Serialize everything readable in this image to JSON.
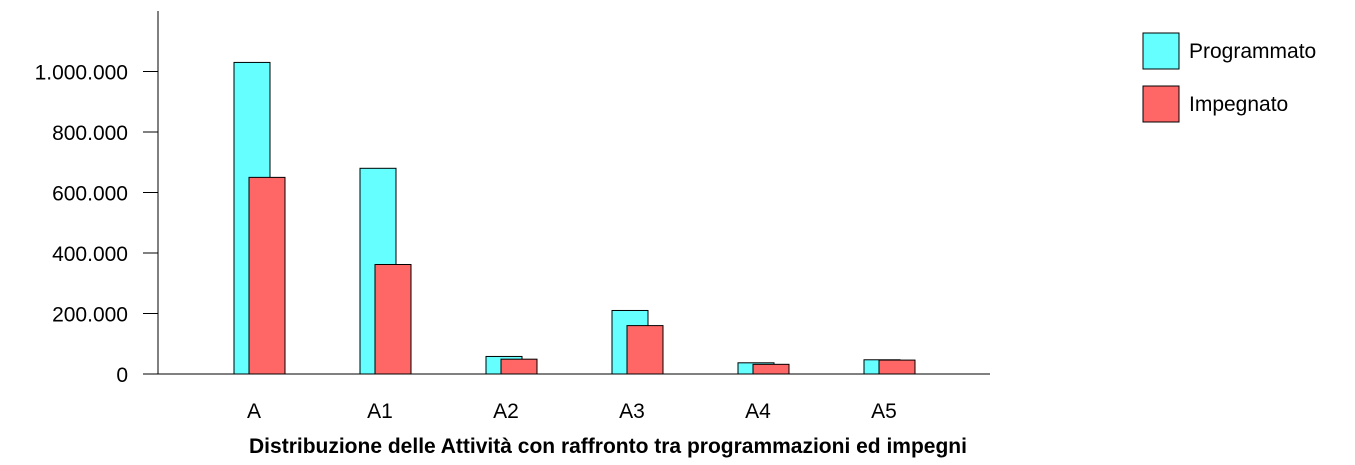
{
  "chart_data": {
    "type": "bar",
    "title": "Distribuzione delle Attività con raffronto tra programmazioni ed impegni",
    "categories": [
      "A",
      "A1",
      "A2",
      "A3",
      "A4",
      "A5"
    ],
    "series": [
      {
        "name": "Programmato",
        "color": "#66ffff",
        "values": [
          1030000,
          680000,
          58000,
          210000,
          37000,
          47000
        ]
      },
      {
        "name": "Impegnato",
        "color": "#ff6666",
        "values": [
          650000,
          362000,
          49000,
          160000,
          32000,
          46000
        ]
      }
    ],
    "yticks": [
      0,
      200000,
      400000,
      600000,
      800000,
      1000000
    ],
    "ytick_labels": [
      "0",
      "200.000",
      "400.000",
      "600.000",
      "800.000",
      "1.000.000"
    ],
    "ylim": [
      0,
      1200000
    ],
    "grid": false,
    "legend_position": "top-right",
    "xlabel": "",
    "ylabel": ""
  }
}
